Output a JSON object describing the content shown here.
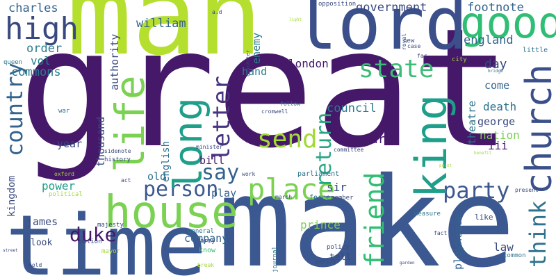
{
  "words": {
    "great": "great",
    "make": "make",
    "man": "man",
    "time": "time",
    "lord": "lord",
    "good": "good",
    "house": "house",
    "king": "king",
    "church": "church",
    "life": "life",
    "long": "long",
    "place": "place",
    "high": "high",
    "send": "send",
    "state": "state",
    "country": "country",
    "party": "party",
    "person": "person",
    "letter": "letter",
    "friend": "friend",
    "return": "return",
    "think": "think",
    "say": "say",
    "duke": "duke",
    "charles": "charles",
    "government": "government",
    "footnote": "footnote",
    "william": "william",
    "order": "order",
    "england": "england",
    "vol": "vol",
    "commons": "commons",
    "london": "london",
    "hand": "hand",
    "enemy": "enemy",
    "authority": "authority",
    "day": "day",
    "come": "come",
    "council": "council",
    "death": "death",
    "george": "george",
    "nation": "nation",
    "earl": "earl",
    "iii": "iii",
    "theatre": "theatre",
    "year": "year",
    "thousand": "thousand",
    "english": "english",
    "bill": "bill",
    "old": "old",
    "sir": "sir",
    "power": "power",
    "kingdom": "kingdom",
    "play": "play",
    "james": "james",
    "prince": "prince",
    "company": "company",
    "law": "law",
    "playhouse": "playhouse",
    "look": "look",
    "tell": "tell",
    "common": "common",
    "parliament": "parliament",
    "history": "history",
    "political": "political",
    "majesty": "majesty",
    "motion": "motion",
    "mayor": "mayor",
    "army": "army",
    "general": "general",
    "know": "know",
    "journal": "journal",
    "policy": "policy",
    "force": "force",
    "member": "member",
    "like": "like",
    "measure": "measure",
    "fact": "fact",
    "present": "present",
    "little": "little",
    "city": "city",
    "far": "far",
    "case": "case",
    "royal": "royal",
    "new": "new",
    "character": "character",
    "opposition": "opposition",
    "ad": "a.d",
    "queen": "queen",
    "war": "war",
    "oxford": "oxford",
    "sidenote": "sidenote",
    "act": "act",
    "minister": "minister",
    "committee": "committee",
    "cromwell": "cromwell",
    "follow": "follow",
    "work": "work",
    "march": "march",
    "break": "break",
    "period": "period",
    "hold": "hold",
    "street": "street",
    "benefit": "benefit",
    "point": "point",
    "bridge": "bridge",
    "light": "light",
    "garden": "garden"
  }
}
